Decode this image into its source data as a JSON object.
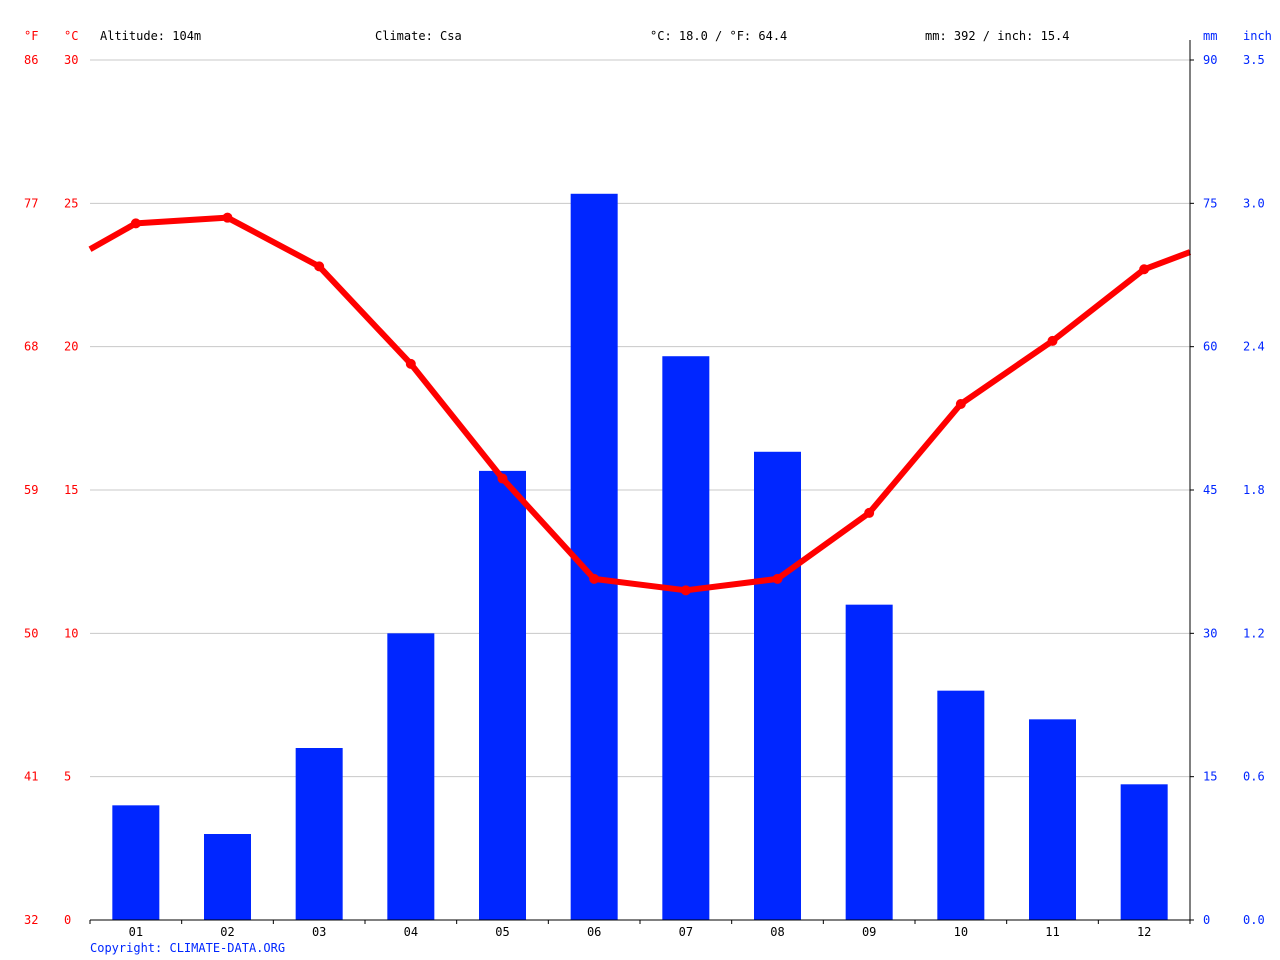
{
  "header": {
    "f_unit": "°F",
    "c_unit": "°C",
    "altitude": "Altitude: 104m",
    "climate": "Climate: Csa",
    "average_temp": "°C: 18.0 / °F: 64.4",
    "precipitation_total": "mm: 392 / inch: 15.4",
    "mm_unit": "mm",
    "inch_unit": "inch"
  },
  "footer": {
    "copyright": "Copyright: CLIMATE-DATA.ORG"
  },
  "colors": {
    "temperature": "#ff0000",
    "precipitation": "#0026ff",
    "grid": "#c8c8c8",
    "axis": "#000000"
  },
  "chart_data": {
    "type": "bar+line",
    "categories": [
      "01",
      "02",
      "03",
      "04",
      "05",
      "06",
      "07",
      "08",
      "09",
      "10",
      "11",
      "12"
    ],
    "series": [
      {
        "type": "bar",
        "axis": "right",
        "unit": "mm",
        "values": [
          12,
          9,
          18,
          30,
          47,
          76,
          59,
          49,
          33,
          24,
          21,
          14.2
        ]
      },
      {
        "type": "line",
        "axis": "left",
        "unit": "°C",
        "values": [
          24.3,
          24.5,
          22.8,
          19.4,
          15.4,
          11.9,
          11.5,
          11.9,
          14.2,
          18.0,
          20.2,
          22.7
        ]
      }
    ],
    "line_edge_values": [
      23.4,
      23.3
    ],
    "left_c_ticks": [
      "0",
      "5",
      "10",
      "15",
      "20",
      "25",
      "30"
    ],
    "left_f_ticks": [
      "32",
      "41",
      "50",
      "59",
      "68",
      "77",
      "86"
    ],
    "right_mm_ticks": [
      "0",
      "15",
      "30",
      "45",
      "60",
      "75",
      "90"
    ],
    "right_inch_ticks": [
      "0.0",
      "0.6",
      "1.2",
      "1.8",
      "2.4",
      "3.0",
      "3.5"
    ],
    "ylim_c": [
      0,
      30
    ],
    "ylim_mm": [
      0,
      90
    ],
    "grid": true
  }
}
